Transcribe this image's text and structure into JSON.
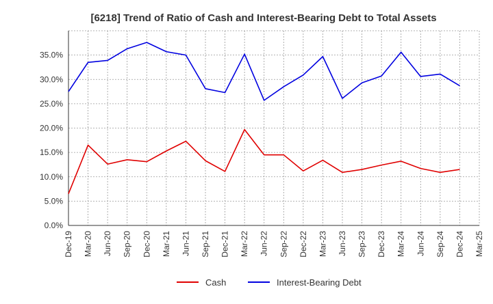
{
  "chart_data": {
    "type": "line",
    "title": "[6218]  Trend of Ratio of Cash and Interest-Bearing Debt to Total Assets",
    "xlabel": "",
    "ylabel": "",
    "ylim": [
      0,
      40
    ],
    "yticks": [
      0,
      5,
      10,
      15,
      20,
      25,
      30,
      35
    ],
    "ytick_labels": [
      "0.0%",
      "5.0%",
      "10.0%",
      "15.0%",
      "20.0%",
      "25.0%",
      "30.0%",
      "35.0%"
    ],
    "x": [
      "Dec-19",
      "Mar-20",
      "Jun-20",
      "Sep-20",
      "Dec-20",
      "Mar-21",
      "Jun-21",
      "Sep-21",
      "Dec-21",
      "Mar-22",
      "Jun-22",
      "Sep-22",
      "Dec-22",
      "Mar-23",
      "Jun-23",
      "Sep-23",
      "Dec-23",
      "Mar-24",
      "Jun-24",
      "Sep-24",
      "Dec-24",
      "Mar-25"
    ],
    "grid": true,
    "legend_position": "bottom",
    "series": [
      {
        "name": "Cash",
        "color": "#e00000",
        "values": [
          6.5,
          16.5,
          12.6,
          13.5,
          13.1,
          15.3,
          17.3,
          13.3,
          11.1,
          19.7,
          14.5,
          14.5,
          11.2,
          13.4,
          10.9,
          11.5,
          12.4,
          13.2,
          11.7,
          10.9,
          11.5,
          null
        ]
      },
      {
        "name": "Interest-Bearing Debt",
        "color": "#0000e0",
        "values": [
          27.5,
          33.5,
          33.9,
          36.3,
          37.6,
          35.7,
          35.0,
          28.1,
          27.3,
          35.2,
          25.7,
          28.5,
          30.9,
          34.7,
          26.1,
          29.3,
          30.7,
          35.6,
          30.6,
          31.1,
          28.7,
          null
        ]
      }
    ]
  }
}
